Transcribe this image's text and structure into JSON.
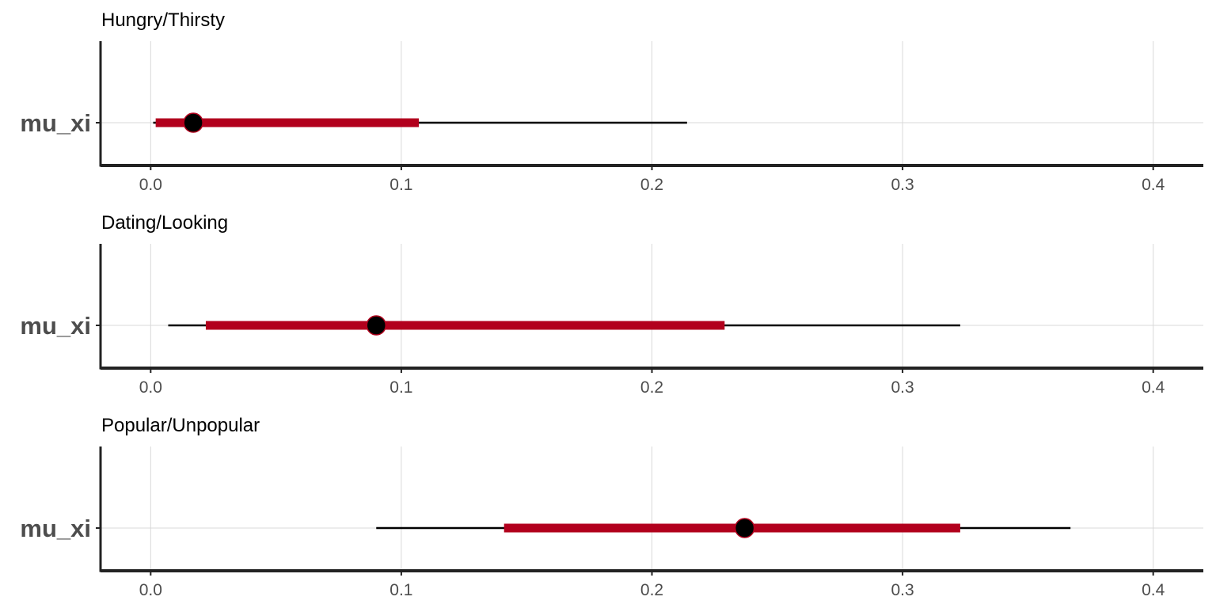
{
  "chart_data": [
    {
      "type": "interval",
      "title": "Hungry/Thirsty",
      "parameter": "mu_xi",
      "xlim": [
        -0.02,
        0.42
      ],
      "xticks": [
        "0.0",
        "0.1",
        "0.2",
        "0.3",
        "0.4"
      ],
      "outer_interval": [
        0.001,
        0.214
      ],
      "inner_interval": [
        0.002,
        0.107
      ],
      "point_estimate": 0.017,
      "grid": true
    },
    {
      "type": "interval",
      "title": "Dating/Looking",
      "parameter": "mu_xi",
      "xlim": [
        -0.02,
        0.42
      ],
      "xticks": [
        "0.0",
        "0.1",
        "0.2",
        "0.3",
        "0.4"
      ],
      "outer_interval": [
        0.007,
        0.323
      ],
      "inner_interval": [
        0.022,
        0.229
      ],
      "point_estimate": 0.09,
      "grid": true
    },
    {
      "type": "interval",
      "title": "Popular/Unpopular",
      "parameter": "mu_xi",
      "xlim": [
        -0.02,
        0.42
      ],
      "xticks": [
        "0.0",
        "0.1",
        "0.2",
        "0.3",
        "0.4"
      ],
      "outer_interval": [
        0.09,
        0.367
      ],
      "inner_interval": [
        0.141,
        0.323
      ],
      "point_estimate": 0.237,
      "grid": true
    }
  ],
  "colors": {
    "inner_interval": "#b2001d",
    "outer_interval": "#000000",
    "point_fill": "#000000",
    "point_stroke": "#b2001d",
    "grid": "#d9d9d9",
    "axis": "#222222"
  }
}
